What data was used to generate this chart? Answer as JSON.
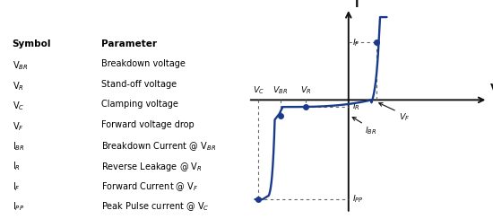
{
  "bg_color": "#ffffff",
  "left_panel": {
    "symbols": [
      "Symbol",
      "V$_{BR}$",
      "V$_R$",
      "V$_C$",
      "V$_F$",
      "I$_{BR}$",
      "I$_R$",
      "I$_F$",
      "I$_{PP}$"
    ],
    "params": [
      "Parameter",
      "Breakdown voltage",
      "Stand-off voltage",
      "Clamping voltage",
      "Forward voltage drop",
      "Breakdown Current @ V$_{BR}$",
      "Reverse Leakage @ V$_R$",
      "Forward Current @ V$_F$",
      "Peak Pulse current @ V$_C$"
    ]
  },
  "curve_color": "#1a3a8c",
  "axis_color": "#111111",
  "dot_color": "#1a3a8c",
  "dashed_color": "#666666",
  "label_color": "#111111",
  "xmin": -6.0,
  "xmax": 8.5,
  "ymin": -9.0,
  "ymax": 7.5,
  "vC": -5.3,
  "vBR": -4.0,
  "vR": -2.5,
  "vF": 1.4,
  "iR": -0.55,
  "iBR": -1.25,
  "iPP": -7.8,
  "iF": 4.5,
  "vF_dot_x": 1.65,
  "iF_dot_y": 4.5
}
